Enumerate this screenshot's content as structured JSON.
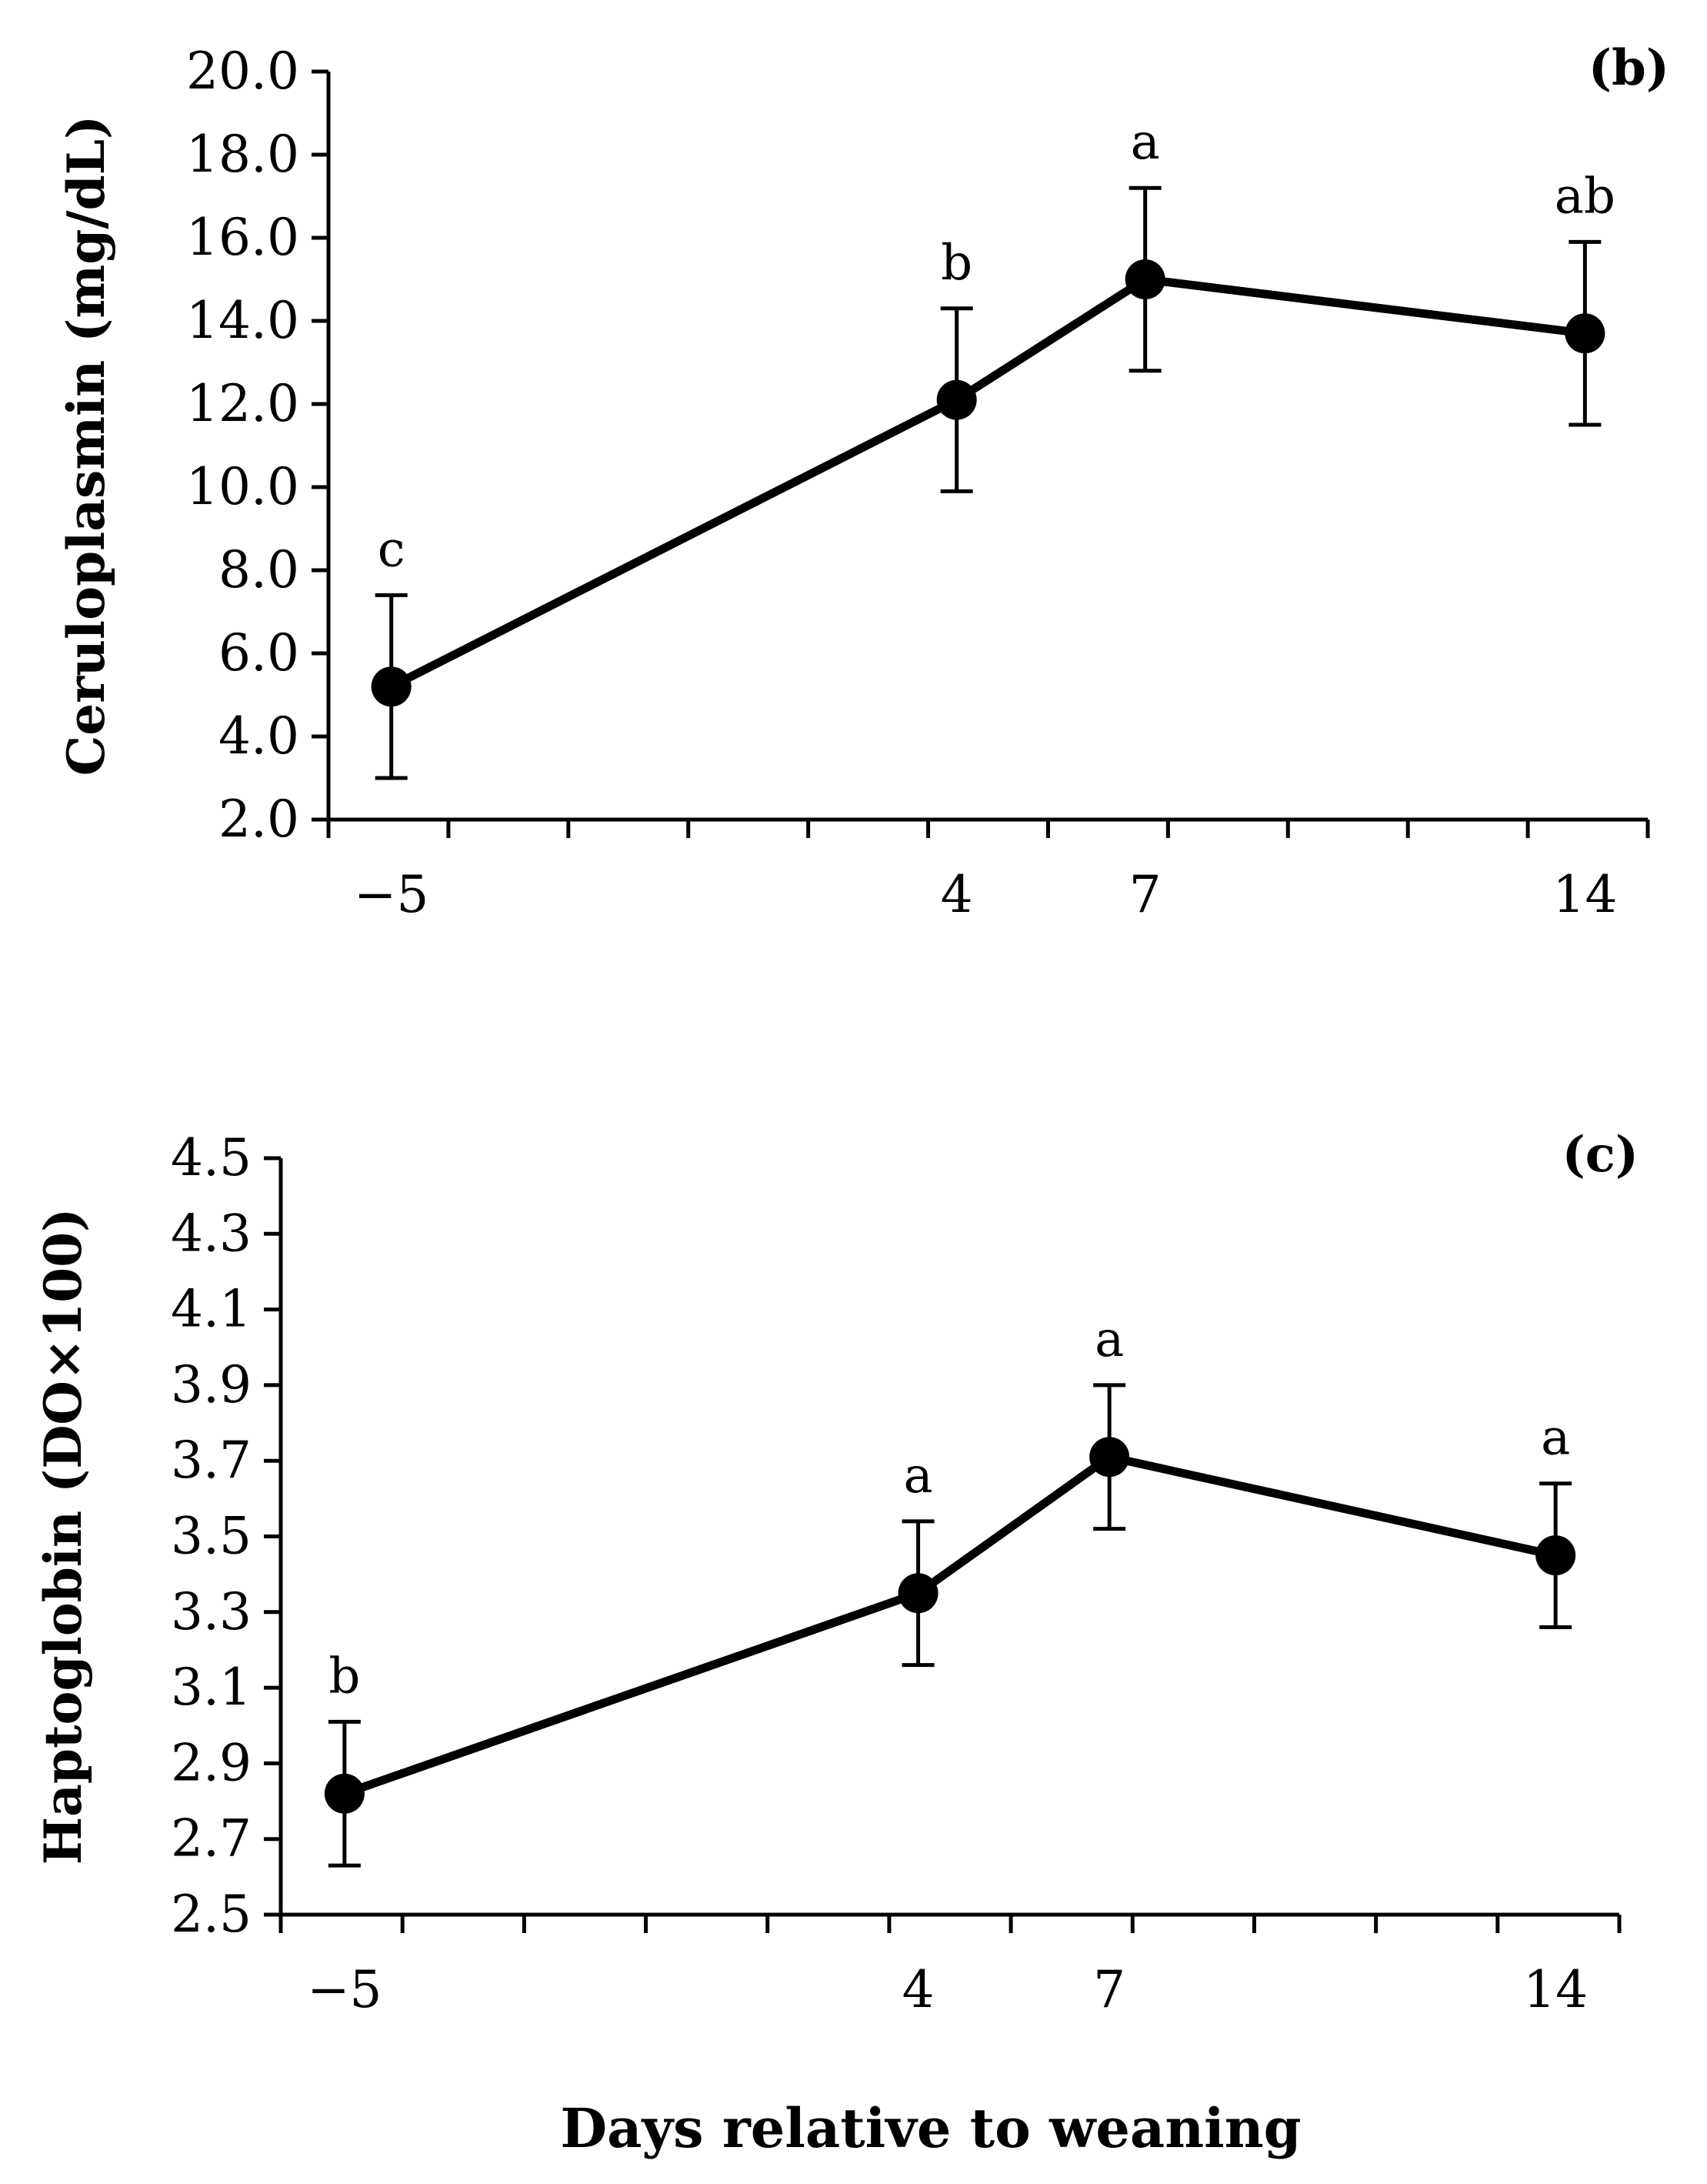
{
  "chart_data": [
    {
      "type": "line",
      "panel_label": "(b)",
      "ylabel": "Ceruloplasmin (mg/dL)",
      "ylim": [
        2.0,
        20.0
      ],
      "yticks": [
        "2.0",
        "4.0",
        "6.0",
        "8.0",
        "10.0",
        "12.0",
        "14.0",
        "16.0",
        "18.0",
        "20.0"
      ],
      "xlim": [
        -6,
        15
      ],
      "x": [
        -5,
        4,
        7,
        14
      ],
      "x_tick_labels": [
        "−5",
        "4",
        "7",
        "14"
      ],
      "series": [
        {
          "name": "Ceruloplasmin",
          "values": [
            5.2,
            12.1,
            15.0,
            13.7
          ],
          "error": [
            2.2,
            2.2,
            2.2,
            2.2
          ],
          "significance": [
            "c",
            "b",
            "a",
            "ab"
          ]
        }
      ]
    },
    {
      "type": "line",
      "panel_label": "(c)",
      "ylabel": "Haptoglobin (DO×100)",
      "ylim": [
        2.5,
        4.5
      ],
      "yticks": [
        "2.5",
        "2.7",
        "2.9",
        "3.1",
        "3.3",
        "3.5",
        "3.7",
        "3.9",
        "4.1",
        "4.3",
        "4.5"
      ],
      "xlim": [
        -6,
        15
      ],
      "x": [
        -5,
        4,
        7,
        14
      ],
      "x_tick_labels": [
        "−5",
        "4",
        "7",
        "14"
      ],
      "series": [
        {
          "name": "Haptoglobin",
          "values": [
            2.82,
            3.35,
            3.71,
            3.45
          ],
          "error": [
            0.19,
            0.19,
            0.19,
            0.19
          ],
          "significance": [
            "b",
            "a",
            "a",
            "a"
          ]
        }
      ]
    }
  ],
  "xlabel": "Days relative to weaning"
}
